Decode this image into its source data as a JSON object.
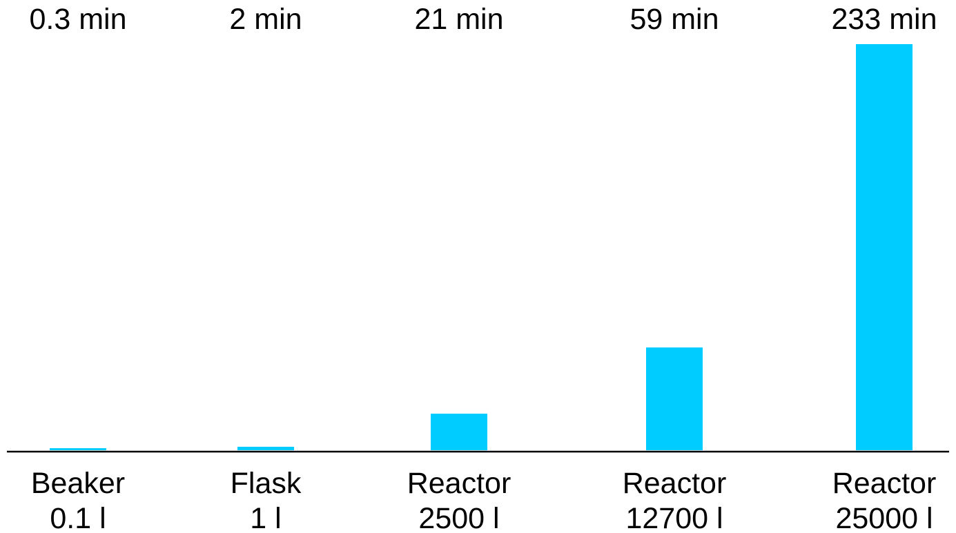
{
  "chart_data": {
    "type": "bar",
    "categories": [
      "Beaker",
      "Flask",
      "Reactor",
      "Reactor",
      "Reactor"
    ],
    "volumes": [
      "0.1 l",
      "1 l",
      "2500 l",
      "12700 l",
      "25000 l"
    ],
    "values": [
      0.3,
      2,
      21,
      59,
      233
    ],
    "data_labels": [
      "0.3 min",
      "2 min",
      "21 min",
      "59 min",
      "233 min"
    ],
    "unit": "min",
    "ylim": [
      0,
      233
    ],
    "grid": false,
    "legend": "none",
    "colors": {
      "bar": "#00CCFF",
      "axis": "#000000",
      "text": "#000000"
    }
  }
}
